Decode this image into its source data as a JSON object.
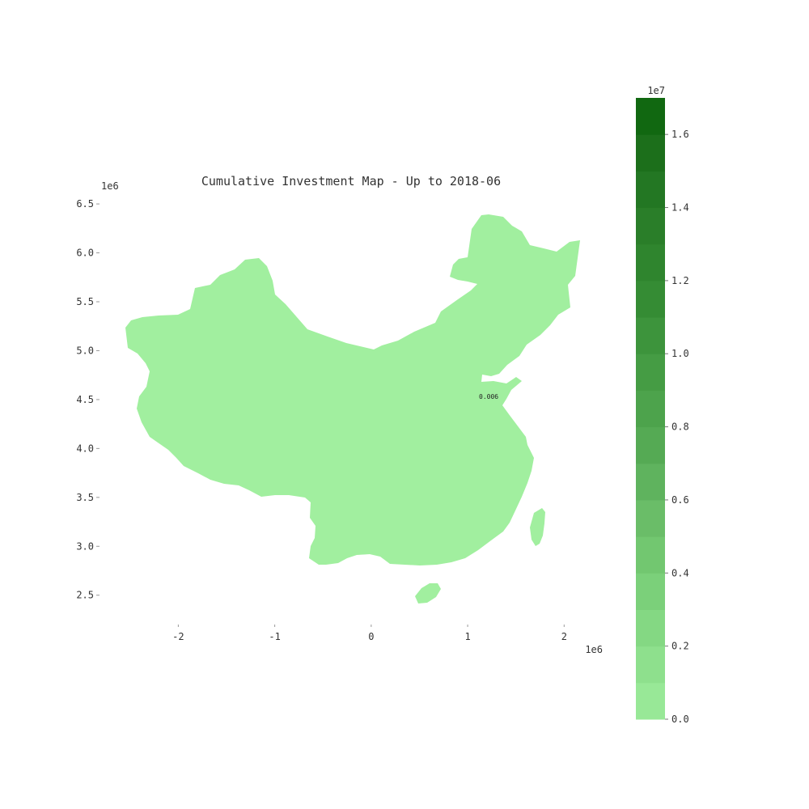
{
  "chart_data": {
    "type": "map",
    "title": "Cumulative Investment Map - Up to 2018-06",
    "map": {
      "region_fill": "#a1ef9f",
      "x_range": [
        -2.8,
        2.4
      ],
      "y_range": [
        2.2,
        6.6
      ],
      "x_ticks": [
        "-2",
        "-1",
        "0",
        "1",
        "2"
      ],
      "y_ticks": [
        "2.5",
        "3.0",
        "3.5",
        "4.0",
        "4.5",
        "5.0",
        "5.5",
        "6.0",
        "6.5"
      ],
      "x_exponent": "1e6",
      "y_exponent": "1e6",
      "annotations": [
        {
          "text": "0.006",
          "x": 1.15,
          "y": 4.5
        }
      ]
    },
    "colorbar": {
      "exponent": "1e7",
      "range": [
        0,
        1.7
      ],
      "ticks": [
        "0.0",
        "0.2",
        "0.4",
        "0.6",
        "0.8",
        "1.0",
        "1.2",
        "1.4",
        "1.6"
      ],
      "levels": [
        0,
        0.1,
        0.2,
        0.3,
        0.4,
        0.5,
        0.6,
        0.7,
        0.8,
        0.9,
        1.0,
        1.1,
        1.2,
        1.3,
        1.4,
        1.5,
        1.6,
        1.7
      ],
      "colors": [
        "#98e897",
        "#8ee08d",
        "#84d883",
        "#7bd07a",
        "#72c770",
        "#6abd68",
        "#5fb35e",
        "#55aa54",
        "#4da34c",
        "#459c44",
        "#3d943c",
        "#358c34",
        "#2f852e",
        "#2a7e29",
        "#237723",
        "#1c6f1b",
        "#116811"
      ]
    }
  }
}
